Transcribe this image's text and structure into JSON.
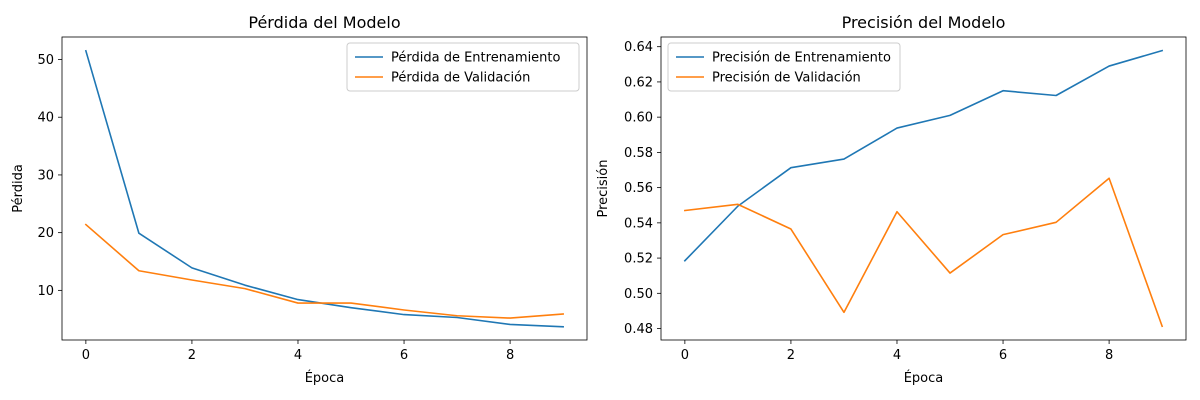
{
  "chart_data": [
    {
      "type": "line",
      "title": "Pérdida del Modelo",
      "xlabel": "Época",
      "ylabel": "Pérdida",
      "x": [
        0,
        1,
        2,
        3,
        4,
        5,
        6,
        7,
        8,
        9
      ],
      "xticks": [
        0,
        2,
        4,
        6,
        8
      ],
      "xlim": [
        -0.45,
        9.45
      ],
      "yticks": [
        10,
        20,
        30,
        40,
        50
      ],
      "ylim": [
        1.4,
        53.9
      ],
      "legend": "top-right",
      "grid": false,
      "series": [
        {
          "name": "Pérdida de Entrenamiento",
          "color": "#1f77b4",
          "values": [
            51.5,
            19.9,
            13.9,
            10.9,
            8.4,
            7.0,
            5.8,
            5.3,
            4.1,
            3.7
          ]
        },
        {
          "name": "Pérdida de Validación",
          "color": "#ff7f0e",
          "values": [
            21.4,
            13.4,
            11.8,
            10.3,
            7.8,
            7.8,
            6.6,
            5.6,
            5.2,
            5.9
          ]
        }
      ]
    },
    {
      "type": "line",
      "title": "Precisión del Modelo",
      "xlabel": "Época",
      "ylabel": "Precisión",
      "x": [
        0,
        1,
        2,
        3,
        4,
        5,
        6,
        7,
        8,
        9
      ],
      "xticks": [
        0,
        2,
        4,
        6,
        8
      ],
      "xlim": [
        -0.45,
        9.45
      ],
      "yticks": [
        0.48,
        0.5,
        0.52,
        0.54,
        0.56,
        0.58,
        0.6,
        0.62,
        0.64
      ],
      "yticklabels": [
        "0.48",
        "0.50",
        "0.52",
        "0.54",
        "0.56",
        "0.58",
        "0.60",
        "0.62",
        "0.64"
      ],
      "ylim": [
        0.4735,
        0.6455
      ],
      "legend": "top-left",
      "grid": false,
      "series": [
        {
          "name": "Precisión de Entrenamiento",
          "color": "#1f77b4",
          "values": [
            0.5185,
            0.5495,
            0.5713,
            0.5762,
            0.5938,
            0.601,
            0.615,
            0.6123,
            0.629,
            0.6378
          ]
        },
        {
          "name": "Precisión de Validación",
          "color": "#ff7f0e",
          "values": [
            0.547,
            0.5505,
            0.5365,
            0.4892,
            0.5463,
            0.5115,
            0.5333,
            0.5403,
            0.5653,
            0.4813
          ]
        }
      ]
    }
  ]
}
